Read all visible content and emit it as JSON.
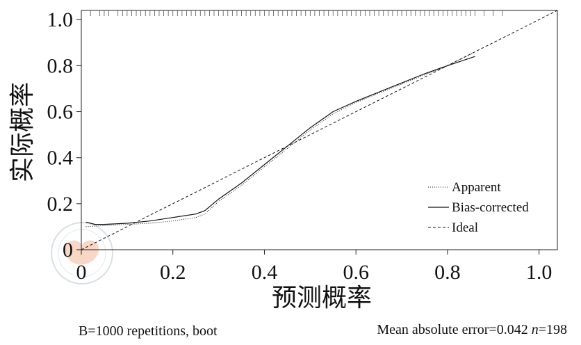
{
  "chart_data": {
    "type": "line",
    "xlabel": "预测概率",
    "ylabel": "实际概率",
    "xlim": [
      0,
      1.0
    ],
    "ylim": [
      0,
      1.0
    ],
    "x_ticks": [
      0,
      0.2,
      0.4,
      0.6,
      0.8,
      1.0
    ],
    "x_tick_labels": [
      "0",
      "0.2",
      "0.4",
      "0.6",
      "0.8",
      "1.0"
    ],
    "y_ticks": [
      0,
      0.2,
      0.4,
      0.6,
      0.8,
      1.0
    ],
    "y_tick_labels": [
      "0",
      "0.2",
      "0.4",
      "0.6",
      "0.8",
      "1.0"
    ],
    "grid": false,
    "legend_position": "bottom-right",
    "series": [
      {
        "name": "Apparent",
        "line_style": "dotted",
        "x": [
          0.01,
          0.05,
          0.1,
          0.15,
          0.2,
          0.25,
          0.27,
          0.3,
          0.35,
          0.4,
          0.45,
          0.5,
          0.55,
          0.6,
          0.65,
          0.7,
          0.75,
          0.8,
          0.86
        ],
        "y": [
          0.1,
          0.105,
          0.11,
          0.115,
          0.125,
          0.14,
          0.155,
          0.21,
          0.28,
          0.36,
          0.44,
          0.52,
          0.59,
          0.64,
          0.68,
          0.72,
          0.76,
          0.8,
          0.86
        ]
      },
      {
        "name": "Bias-corrected",
        "line_style": "solid",
        "x": [
          0.01,
          0.03,
          0.05,
          0.1,
          0.15,
          0.2,
          0.25,
          0.27,
          0.3,
          0.35,
          0.4,
          0.45,
          0.5,
          0.55,
          0.6,
          0.65,
          0.7,
          0.75,
          0.8,
          0.86
        ],
        "y": [
          0.12,
          0.11,
          0.11,
          0.115,
          0.125,
          0.14,
          0.155,
          0.17,
          0.22,
          0.29,
          0.37,
          0.45,
          0.53,
          0.6,
          0.645,
          0.685,
          0.725,
          0.765,
          0.8,
          0.84
        ]
      },
      {
        "name": "Ideal",
        "line_style": "dashed",
        "x": [
          0,
          1.04
        ],
        "y": [
          0,
          1.04
        ]
      }
    ],
    "rug": [
      0.02,
      0.04,
      0.05,
      0.06,
      0.08,
      0.09,
      0.1,
      0.11,
      0.12,
      0.13,
      0.14,
      0.15,
      0.16,
      0.17,
      0.18,
      0.19,
      0.2,
      0.21,
      0.22,
      0.23,
      0.24,
      0.25,
      0.26,
      0.27,
      0.28,
      0.29,
      0.3,
      0.31,
      0.32,
      0.33,
      0.34,
      0.35,
      0.36,
      0.37,
      0.38,
      0.39,
      0.4,
      0.41,
      0.42,
      0.43,
      0.44,
      0.45,
      0.46,
      0.47,
      0.48,
      0.49,
      0.5,
      0.51,
      0.52,
      0.53,
      0.54,
      0.55,
      0.56,
      0.57,
      0.58,
      0.59,
      0.6,
      0.61,
      0.62,
      0.63,
      0.64,
      0.65,
      0.66,
      0.67,
      0.68,
      0.69,
      0.7,
      0.71,
      0.72,
      0.73,
      0.74,
      0.75,
      0.76,
      0.77,
      0.78,
      0.79,
      0.8,
      0.81,
      0.82,
      0.83,
      0.84,
      0.85,
      0.86,
      0.88,
      0.9,
      0.92
    ]
  },
  "footer": {
    "left": "B=1000 repetitions, boot",
    "right_prefix": "Mean absolute error=0.042 ",
    "n_symbol": "n",
    "n_value": "=198"
  },
  "colors": {
    "line": "#111111",
    "axis": "#222222",
    "background": "#ffffff",
    "watermark": "#f4b79a"
  }
}
